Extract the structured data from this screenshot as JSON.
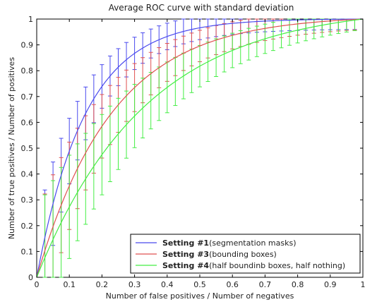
{
  "chart_data": {
    "type": "line",
    "title": "Average ROC curve with standard deviation",
    "xlabel": "Number of false positives / Number of negatives",
    "ylabel": "Number of true positives / Number of positives",
    "xlim": [
      0,
      1
    ],
    "ylim": [
      0,
      1
    ],
    "xticks": [
      "0",
      "0.1",
      "0.2",
      "0.3",
      "0.4",
      "0.5",
      "0.6",
      "0.7",
      "0.8",
      "0.9",
      "1"
    ],
    "yticks": [
      "0",
      "0.1",
      "0.2",
      "0.3",
      "0.4",
      "0.5",
      "0.6",
      "0.7",
      "0.8",
      "0.9",
      "1"
    ],
    "grid": false,
    "legend_position": "bottom-right",
    "x": [
      0.025,
      0.05,
      0.075,
      0.1,
      0.125,
      0.15,
      0.175,
      0.2,
      0.225,
      0.25,
      0.275,
      0.3,
      0.325,
      0.35,
      0.375,
      0.4,
      0.425,
      0.45,
      0.475,
      0.5,
      0.525,
      0.55,
      0.575,
      0.6,
      0.625,
      0.65,
      0.675,
      0.7,
      0.725,
      0.75,
      0.775,
      0.8,
      0.825,
      0.85,
      0.875,
      0.9,
      0.925,
      0.95,
      0.975
    ],
    "series": [
      {
        "name": "Setting #1(segmentation masks)",
        "label_bold": "Setting #1",
        "label_rest": "(segmentation masks)",
        "color": "#4a4aee",
        "curve_k": 6.7,
        "std": 0.17
      },
      {
        "name": "Setting #3(bounding boxes)",
        "label_bold": "Setting #3",
        "label_rest": "(bounding boxes)",
        "color": "#e05050",
        "curve_k": 4.3,
        "std": 0.2
      },
      {
        "name": "Setting #4(half boundinb boxes, half nothing)",
        "label_bold": "Setting #4",
        "label_rest": "(half boundinb boxes, half nothing)",
        "color": "#44ee44",
        "curve_k": 3.0,
        "std": 0.22
      }
    ]
  }
}
